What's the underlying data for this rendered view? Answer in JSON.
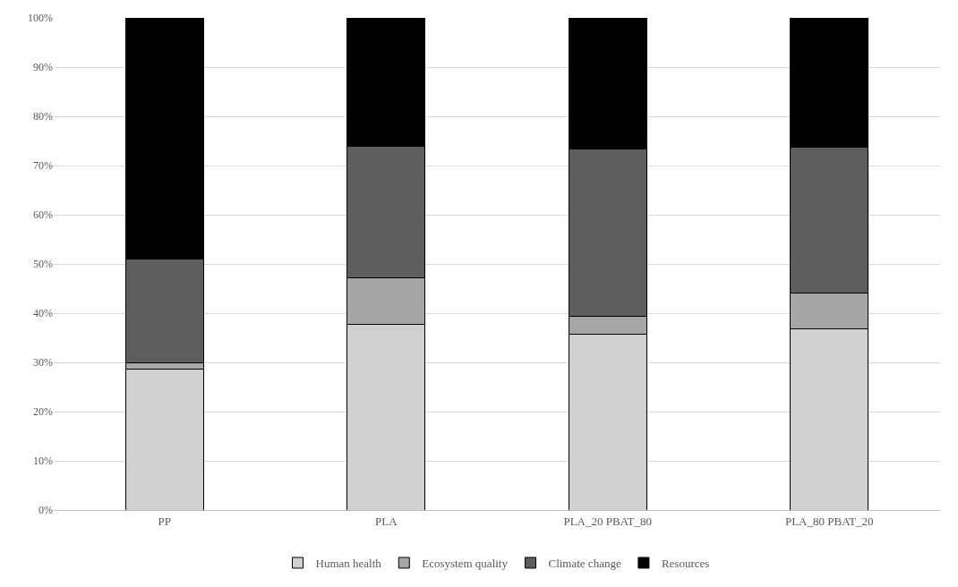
{
  "chart_data": {
    "type": "bar",
    "stacked": true,
    "categories": [
      "PP",
      "PLA",
      "PLA_20 PBAT_80",
      "PLA_80 PBAT_20"
    ],
    "series": [
      {
        "name": "Human health",
        "color": "#d0d0d0",
        "values": [
          28.7,
          37.7,
          35.8,
          36.9
        ]
      },
      {
        "name": "Ecosystem quality",
        "color": "#a6a6a6",
        "values": [
          1.3,
          9.5,
          3.5,
          7.2
        ]
      },
      {
        "name": "Climate change",
        "color": "#5e5e5e",
        "values": [
          21,
          26.8,
          34,
          29.6
        ]
      },
      {
        "name": "Resources",
        "color": "#000000",
        "values": [
          49,
          26,
          26.7,
          26.3
        ]
      }
    ],
    "ylim": [
      0,
      100
    ],
    "yticks": [
      {
        "value": 0,
        "label": "0%"
      },
      {
        "value": 10,
        "label": "10%"
      },
      {
        "value": 20,
        "label": "20%"
      },
      {
        "value": 30,
        "label": "30%"
      },
      {
        "value": 40,
        "label": "40%"
      },
      {
        "value": 50,
        "label": "50%"
      },
      {
        "value": 60,
        "label": "60%"
      },
      {
        "value": 70,
        "label": "70%"
      },
      {
        "value": 80,
        "label": "80%"
      },
      {
        "value": 90,
        "label": "90%"
      },
      {
        "value": 100,
        "label": "100%"
      }
    ],
    "grid": "y",
    "legend": "bottom"
  }
}
